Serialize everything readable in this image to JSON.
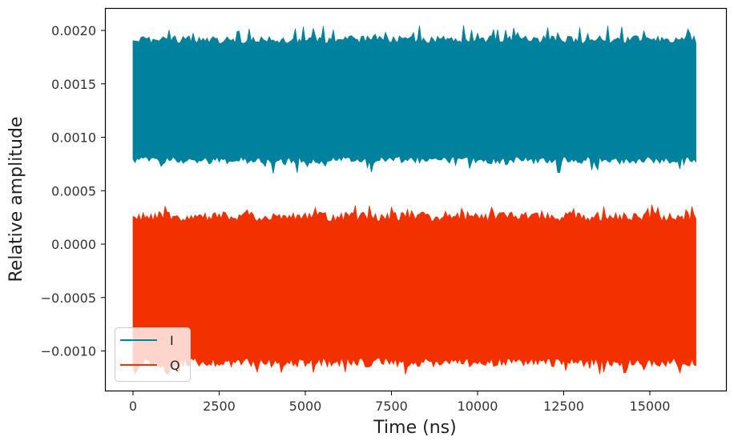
{
  "chart_data": {
    "type": "line",
    "title": "",
    "xlabel": "Time (ns)",
    "ylabel": "Relative amplitude",
    "xlim": [
      -800,
      17200
    ],
    "ylim": [
      -0.00137,
      0.00221
    ],
    "x_ticks": [
      0,
      2500,
      5000,
      7500,
      10000,
      12500,
      15000
    ],
    "x_tick_labels": [
      "0",
      "2500",
      "5000",
      "7500",
      "10000",
      "12500",
      "15000"
    ],
    "y_ticks": [
      -0.001,
      -0.0005,
      0.0,
      0.0005,
      0.001,
      0.0015,
      0.002
    ],
    "y_tick_labels": [
      "−0.0010",
      "−0.0005",
      "0.0000",
      "0.0005",
      "0.0010",
      "0.0015",
      "0.0020"
    ],
    "grid": false,
    "legend_position": "lower left",
    "x_range_data": [
      0,
      16384
    ],
    "series": [
      {
        "name": "I",
        "color": "#00829e",
        "description": "Dense oscillating signal filling a band",
        "envelope_max": 0.00195,
        "envelope_min": 0.00075,
        "peak_max": 0.00205,
        "peak_min": 0.00066,
        "mean": 0.00135
      },
      {
        "name": "Q",
        "color": "#f23000",
        "description": "Dense oscillating signal filling a band",
        "envelope_max": 0.0003,
        "envelope_min": -0.00115,
        "peak_max": 0.00037,
        "peak_min": -0.00122,
        "mean": -0.00042
      }
    ]
  },
  "legend": {
    "items": [
      {
        "label": "I",
        "color": "#00829e"
      },
      {
        "label": "Q",
        "color": "#f23000"
      }
    ]
  }
}
